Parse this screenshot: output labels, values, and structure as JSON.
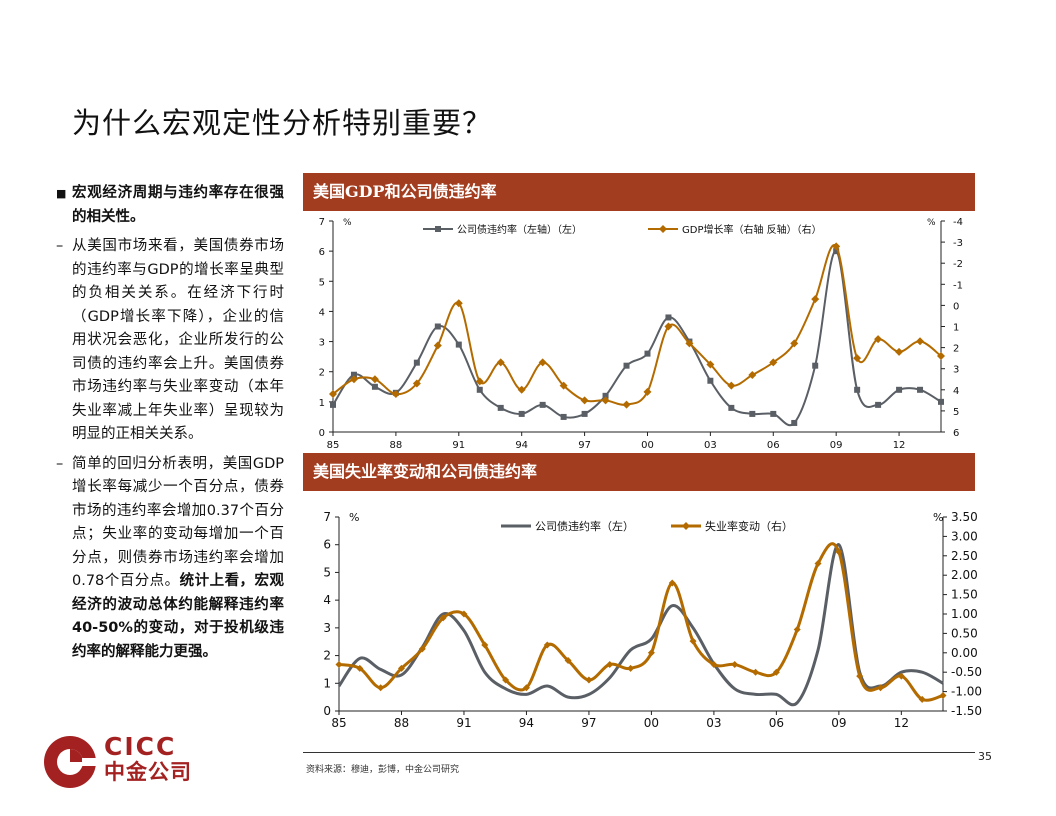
{
  "title": "为什么宏观定性分析特别重要？",
  "left": {
    "bullet": "宏观经济周期与违约率存在很强的相关性。",
    "para1": "从美国市场来看，美国债券市场的违约率与GDP的增长率呈典型的负相关关系。在经济下行时（GDP增长率下降），企业的信用状况会恶化，企业所发行的公司债的违约率会上升。美国债券市场违约率与失业率变动（本年失业率减上年失业率）呈现较为明显的正相关关系。",
    "para2_normal": "简单的回归分析表明，美国GDP增长率每减少一个百分点，债券市场的违约率会增加0.37个百分点；失业率的变动每增加一个百分点，则债券市场违约率会增加0.78个百分点。",
    "para2_bold": "统计上看，宏观经济的波动总体约能解释违约率40-50%的变动，对于投机级违约率的解释能力更强。"
  },
  "chart1_header": "美国GDP和公司债违约率",
  "chart2_header": "美国失业率变动和公司债违约率",
  "chart_data": [
    {
      "type": "line",
      "title": "美国GDP和公司债违约率",
      "x": [
        1985,
        1986,
        1987,
        1988,
        1989,
        1990,
        1991,
        1992,
        1993,
        1994,
        1995,
        1996,
        1997,
        1998,
        1999,
        2000,
        2001,
        2002,
        2003,
        2004,
        2005,
        2006,
        2007,
        2008,
        2009,
        2010,
        2011,
        2012,
        2013,
        2014
      ],
      "x_ticks": [
        "85",
        "88",
        "91",
        "94",
        "97",
        "00",
        "03",
        "06",
        "09",
        "12"
      ],
      "series": [
        {
          "name": "公司债违约率（左轴）（左）",
          "axis": "left",
          "color": "#5a5f66",
          "values": [
            0.9,
            1.9,
            1.5,
            1.3,
            2.3,
            3.5,
            2.9,
            1.4,
            0.8,
            0.6,
            0.9,
            0.5,
            0.6,
            1.2,
            2.2,
            2.6,
            3.8,
            3.0,
            1.7,
            0.8,
            0.6,
            0.6,
            0.3,
            2.2,
            6.0,
            1.4,
            0.9,
            1.4,
            1.4,
            1.0
          ]
        },
        {
          "name": "GDP增长率（右轴 反轴）（右）",
          "axis": "right",
          "color": "#b36b00",
          "values": [
            4.2,
            3.5,
            3.5,
            4.2,
            3.7,
            1.9,
            -0.1,
            3.6,
            2.7,
            4.0,
            2.7,
            3.8,
            4.5,
            4.5,
            4.7,
            4.1,
            1.0,
            1.8,
            2.8,
            3.8,
            3.3,
            2.7,
            1.8,
            -0.3,
            -2.8,
            2.5,
            1.6,
            2.2,
            1.7,
            2.4
          ]
        }
      ],
      "y_left_label": "%",
      "y_left_range": [
        0,
        7
      ],
      "y_left_ticks": [
        "0",
        "1",
        "2",
        "3",
        "4",
        "5",
        "6",
        "7"
      ],
      "y_right_label": "%",
      "y_right_range": [
        -4,
        6
      ],
      "y_right_inverted": true,
      "y_right_ticks": [
        "-4",
        "-3",
        "-2",
        "-1",
        "0",
        "1",
        "2",
        "3",
        "4",
        "5",
        "6"
      ]
    },
    {
      "type": "line",
      "title": "美国失业率变动和公司债违约率",
      "x": [
        1985,
        1986,
        1987,
        1988,
        1989,
        1990,
        1991,
        1992,
        1993,
        1994,
        1995,
        1996,
        1997,
        1998,
        1999,
        2000,
        2001,
        2002,
        2003,
        2004,
        2005,
        2006,
        2007,
        2008,
        2009,
        2010,
        2011,
        2012,
        2013,
        2014
      ],
      "x_ticks": [
        "85",
        "88",
        "91",
        "94",
        "97",
        "00",
        "03",
        "06",
        "09",
        "12"
      ],
      "series": [
        {
          "name": "公司债违约率（左）",
          "axis": "left",
          "color": "#5a5f66",
          "values": [
            0.9,
            1.9,
            1.5,
            1.3,
            2.3,
            3.5,
            2.9,
            1.4,
            0.8,
            0.6,
            0.9,
            0.5,
            0.6,
            1.2,
            2.2,
            2.6,
            3.8,
            3.0,
            1.7,
            0.8,
            0.6,
            0.6,
            0.3,
            2.2,
            6.0,
            1.4,
            0.9,
            1.4,
            1.4,
            1.0
          ]
        },
        {
          "name": "失业率变动（右）",
          "axis": "right",
          "color": "#b36b00",
          "values": [
            -0.3,
            -0.4,
            -0.9,
            -0.4,
            0.1,
            0.9,
            1.0,
            0.2,
            -0.7,
            -0.9,
            0.2,
            -0.2,
            -0.7,
            -0.3,
            -0.4,
            -0.0,
            1.8,
            0.3,
            -0.3,
            -0.3,
            -0.5,
            -0.5,
            0.6,
            2.3,
            2.6,
            -0.6,
            -0.9,
            -0.6,
            -1.2,
            -1.1
          ]
        }
      ],
      "y_left_range": [
        0,
        7
      ],
      "y_left_ticks": [
        "0",
        "1",
        "2",
        "3",
        "4",
        "5",
        "6",
        "7"
      ],
      "y_left_label": "%",
      "y_right_label": "%",
      "y_right_range": [
        -1.5,
        3.5
      ],
      "y_right_ticks": [
        "-1.50",
        "-1.00",
        "-0.50",
        "0.00",
        "0.50",
        "1.00",
        "1.50",
        "2.00",
        "2.50",
        "3.00",
        "3.50"
      ]
    }
  ],
  "logo": {
    "en": "CICC",
    "cn": "中金公司"
  },
  "source": "资料来源：穆迪，彭博，中金公司研究",
  "page_number": "35"
}
